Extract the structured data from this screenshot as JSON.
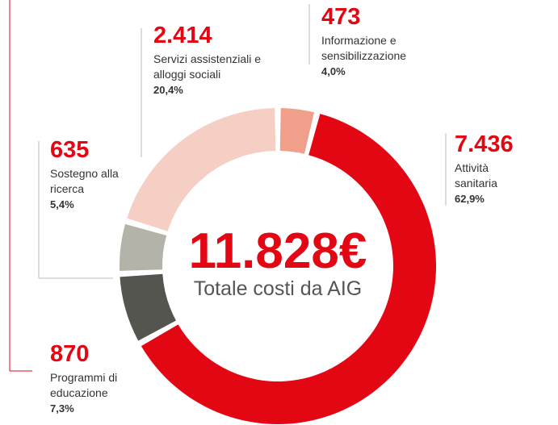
{
  "chart_data": {
    "type": "donut",
    "categories": [
      "Informazione e sensibilizzazione",
      "Attività sanitaria",
      "Programmi di educazione",
      "Sostegno alla ricerca",
      "Servizi assistenziali e alloggi sociali"
    ],
    "values": [
      473,
      7436,
      870,
      635,
      2414
    ],
    "value_labels": [
      "473",
      "7.436",
      "870",
      "635",
      "2.414"
    ],
    "percentages": [
      4.0,
      62.9,
      7.3,
      5.4,
      20.4
    ],
    "percentage_labels": [
      "4,0%",
      "62,9%",
      "7,3%",
      "5,4%",
      "20,4%"
    ],
    "colors": [
      "#f0a08a",
      "#e30613",
      "#55554f",
      "#b3b3aa",
      "#f6cfc4"
    ],
    "total_label": "11.828€",
    "total_caption": "Totale costi da AIG"
  }
}
